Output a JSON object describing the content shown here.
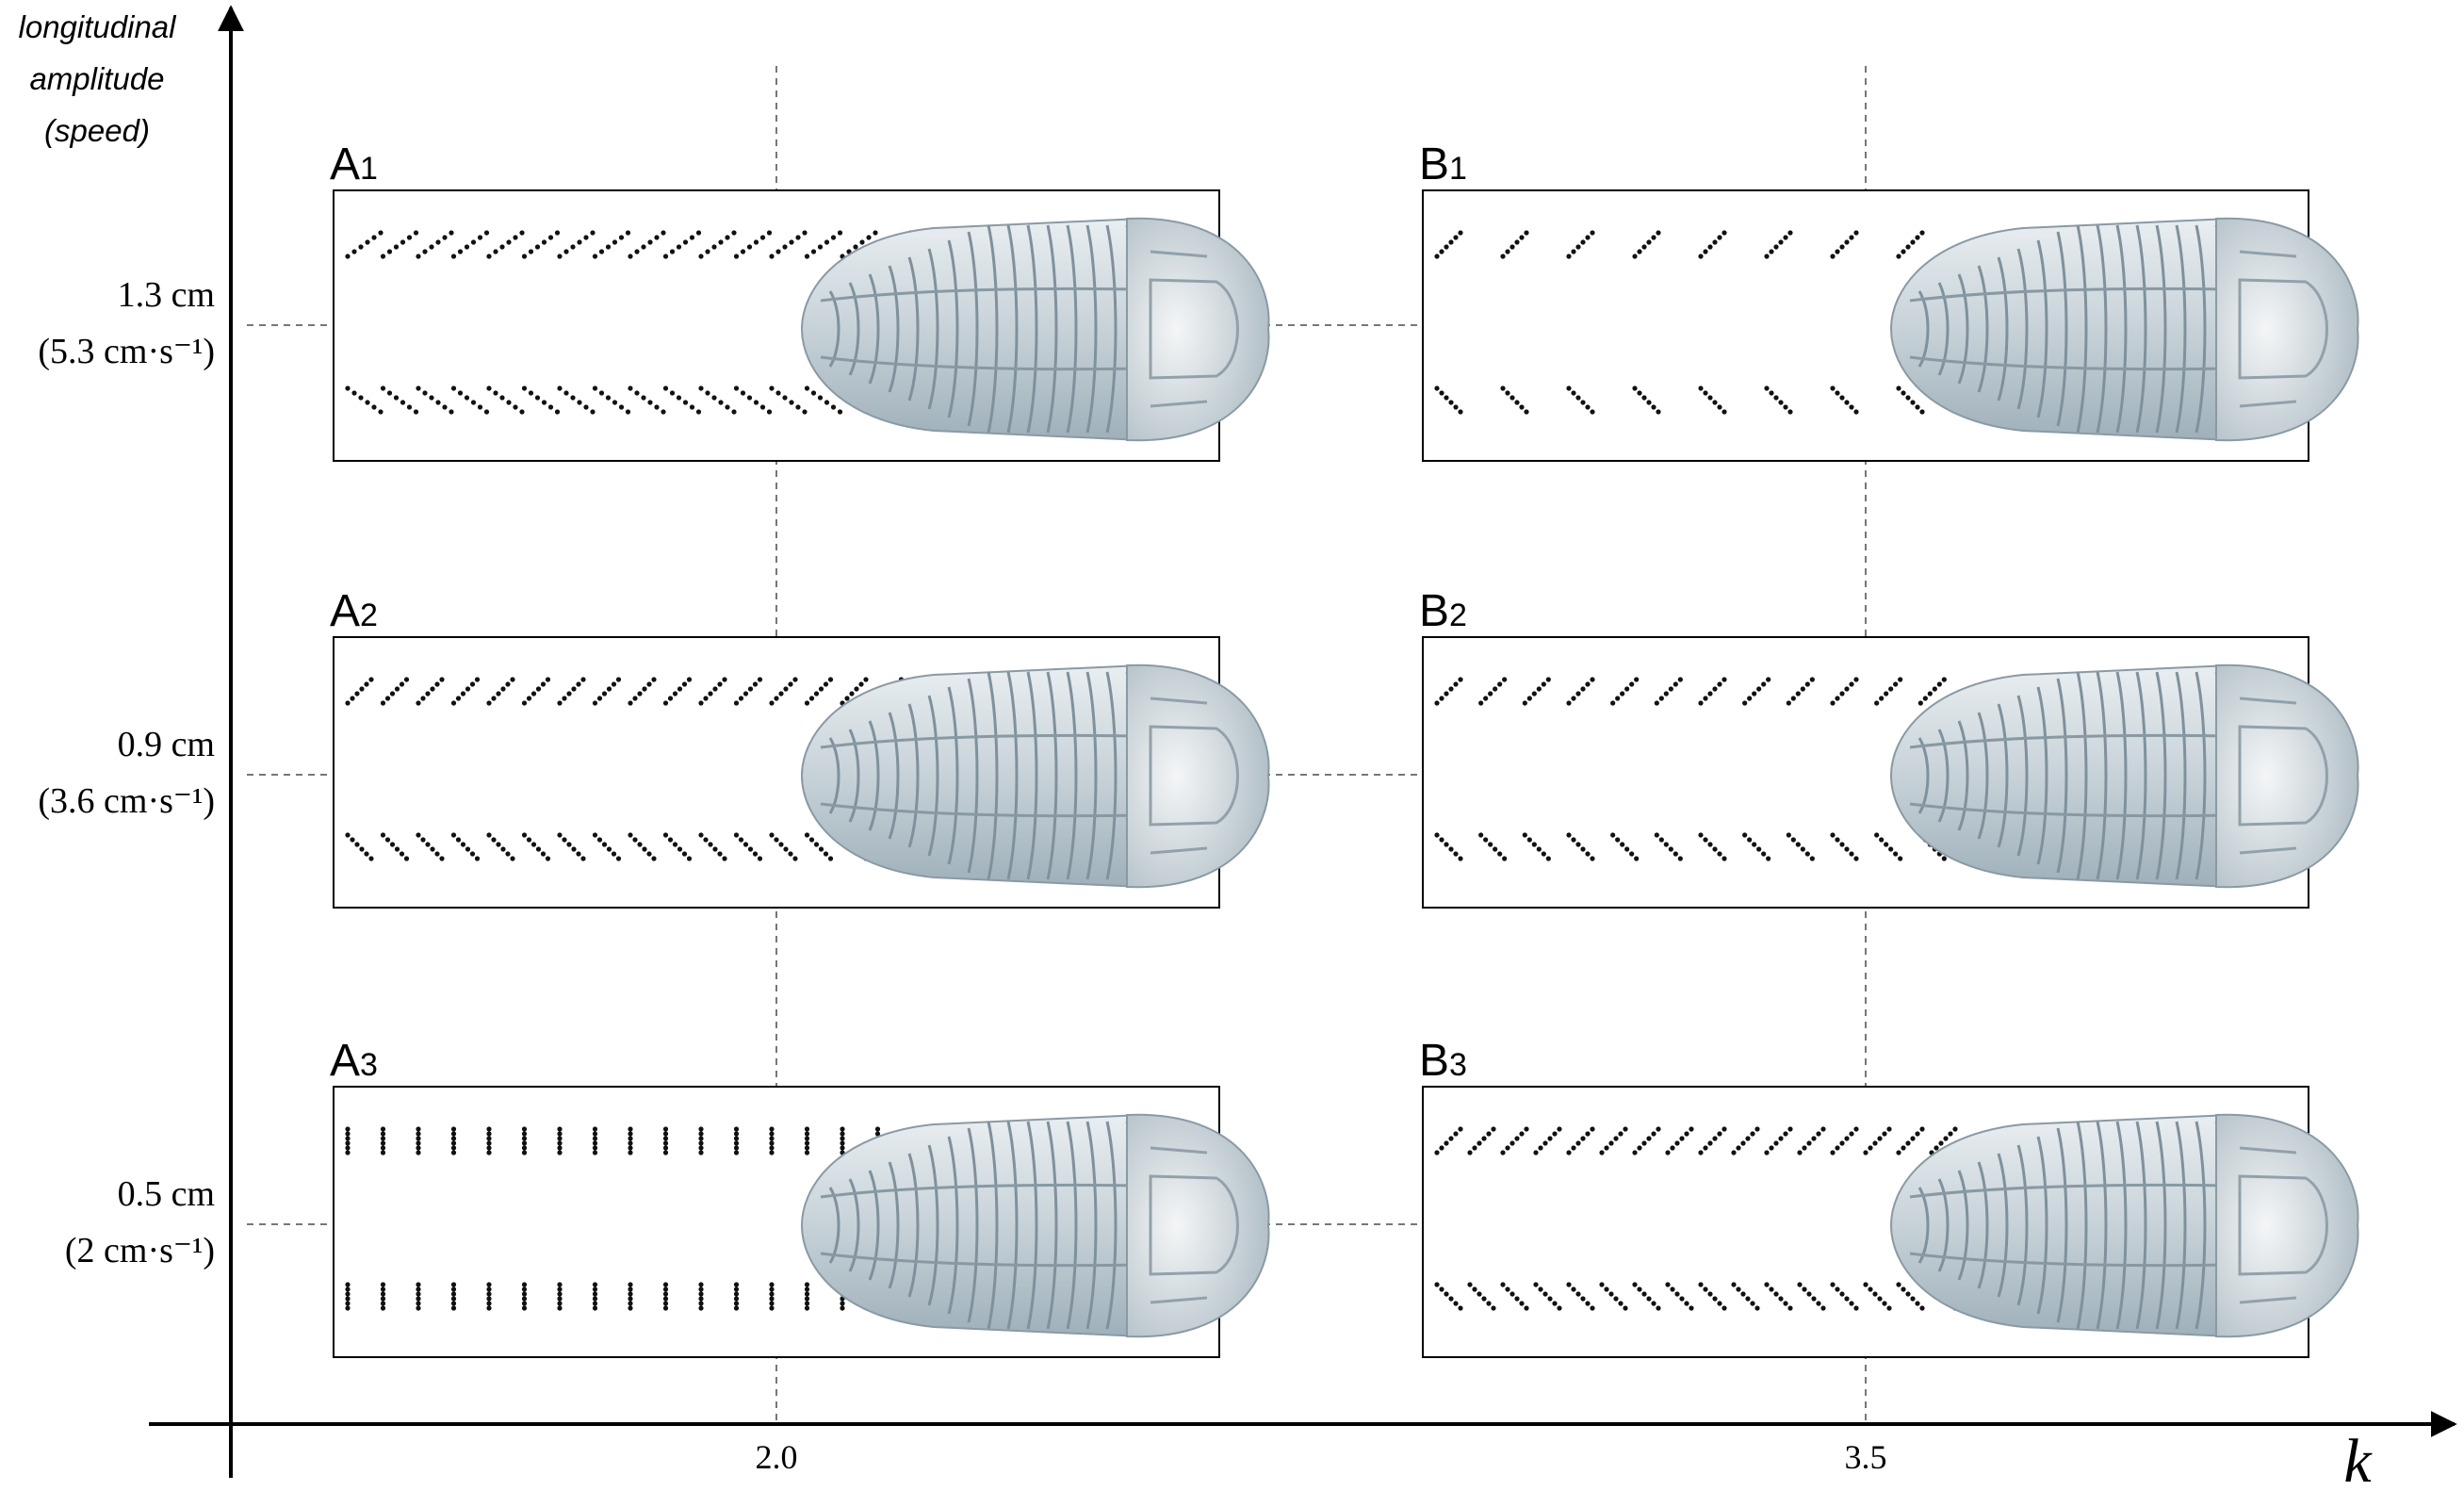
{
  "y_axis": {
    "title": [
      "longitudinal",
      "amplitude",
      "(speed)"
    ]
  },
  "x_axis": {
    "title": "k"
  },
  "rows": [
    {
      "amplitude": "1.3 cm",
      "speed": "(5.3 cm·s⁻¹)"
    },
    {
      "amplitude": "0.9 cm",
      "speed": "(3.6 cm·s⁻¹)"
    },
    {
      "amplitude": "0.5 cm",
      "speed": "(2 cm·s⁻¹)"
    }
  ],
  "columns": [
    {
      "tick": "2.0",
      "panels": [
        {
          "letter": "A",
          "index": "1"
        },
        {
          "letter": "A",
          "index": "2"
        },
        {
          "letter": "A",
          "index": "3"
        }
      ]
    },
    {
      "tick": "3.5",
      "panels": [
        {
          "letter": "B",
          "index": "1"
        },
        {
          "letter": "B",
          "index": "2"
        },
        {
          "letter": "B",
          "index": "3"
        }
      ]
    }
  ]
}
